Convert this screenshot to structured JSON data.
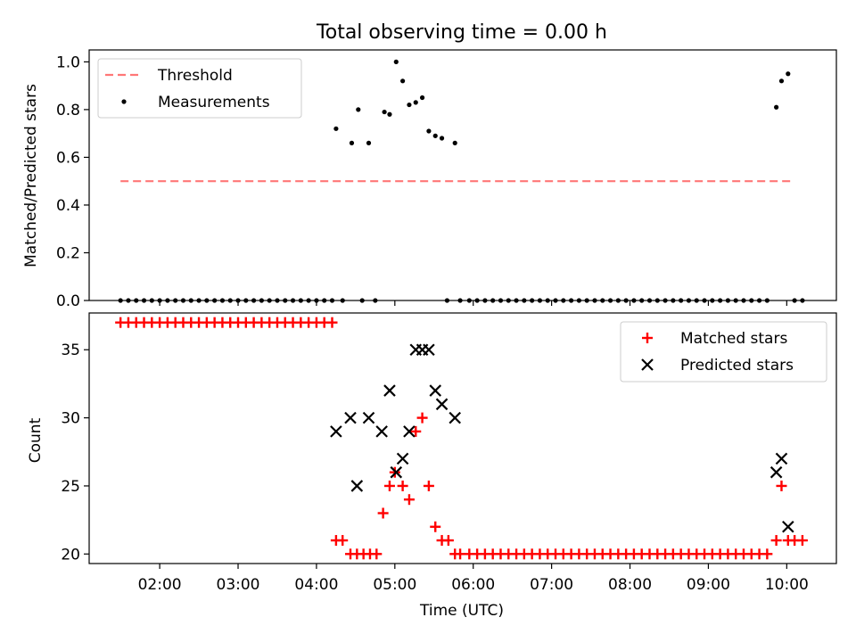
{
  "figure": {
    "title": "Total observing time = 0.00 h"
  },
  "chart_data": [
    {
      "type": "scatter",
      "panel": "top",
      "xlabel": "",
      "ylabel": "Matched/Predicted stars",
      "ylim": [
        0.0,
        1.05
      ],
      "yticks": [
        0.0,
        0.2,
        0.4,
        0.6,
        0.8,
        1.0
      ],
      "ytick_labels": [
        "0.0",
        "0.2",
        "0.4",
        "0.6",
        "0.8",
        "1.0"
      ],
      "legend": {
        "placement": "top-left",
        "entries": [
          "Threshold",
          "Measurements"
        ]
      },
      "threshold": {
        "name": "Threshold",
        "value": 0.5,
        "x_range": [
          "01:30",
          "10:05"
        ],
        "color": "#ff7777"
      },
      "measurements": {
        "name": "Measurements",
        "color": "#000000",
        "zeros_x": [
          "01:30",
          "01:36",
          "01:42",
          "01:48",
          "01:54",
          "02:00",
          "02:06",
          "02:12",
          "02:18",
          "02:24",
          "02:30",
          "02:36",
          "02:42",
          "02:48",
          "02:54",
          "03:00",
          "03:06",
          "03:12",
          "03:18",
          "03:24",
          "03:30",
          "03:36",
          "03:42",
          "03:48",
          "03:54",
          "04:00",
          "04:06",
          "04:12",
          "04:20",
          "04:35",
          "04:45",
          "05:40",
          "05:50",
          "05:57",
          "06:03",
          "06:09",
          "06:15",
          "06:21",
          "06:27",
          "06:33",
          "06:39",
          "06:45",
          "06:51",
          "06:57",
          "07:03",
          "07:09",
          "07:15",
          "07:21",
          "07:27",
          "07:33",
          "07:39",
          "07:45",
          "07:51",
          "07:57",
          "08:03",
          "08:09",
          "08:15",
          "08:21",
          "08:27",
          "08:33",
          "08:39",
          "08:45",
          "08:51",
          "08:57",
          "09:03",
          "09:09",
          "09:15",
          "09:21",
          "09:27",
          "09:33",
          "09:39",
          "09:45",
          "10:06",
          "10:12"
        ],
        "points": [
          {
            "x": "04:15",
            "y": 0.72
          },
          {
            "x": "04:27",
            "y": 0.66
          },
          {
            "x": "04:32",
            "y": 0.8
          },
          {
            "x": "04:40",
            "y": 0.66
          },
          {
            "x": "04:52",
            "y": 0.79
          },
          {
            "x": "04:56",
            "y": 0.78
          },
          {
            "x": "05:01",
            "y": 1.0
          },
          {
            "x": "05:06",
            "y": 0.92
          },
          {
            "x": "05:11",
            "y": 0.82
          },
          {
            "x": "05:16",
            "y": 0.83
          },
          {
            "x": "05:21",
            "y": 0.85
          },
          {
            "x": "05:26",
            "y": 0.71
          },
          {
            "x": "05:31",
            "y": 0.69
          },
          {
            "x": "05:36",
            "y": 0.68
          },
          {
            "x": "05:46",
            "y": 0.66
          },
          {
            "x": "09:52",
            "y": 0.81
          },
          {
            "x": "09:56",
            "y": 0.92
          },
          {
            "x": "10:01",
            "y": 0.95
          }
        ]
      }
    },
    {
      "type": "scatter",
      "panel": "bottom",
      "xlabel": "Time (UTC)",
      "ylabel": "Count",
      "ylim": [
        19.3,
        37.7
      ],
      "yticks": [
        20,
        25,
        30,
        35
      ],
      "ytick_labels": [
        "20",
        "25",
        "30",
        "35"
      ],
      "xticks": [
        "02:00",
        "03:00",
        "04:00",
        "05:00",
        "06:00",
        "07:00",
        "08:00",
        "09:00",
        "10:00"
      ],
      "xlim": [
        "01:06",
        "10:38"
      ],
      "legend": {
        "placement": "top-right",
        "entries": [
          "Matched stars",
          "Predicted stars"
        ]
      },
      "matched": {
        "name": "Matched stars",
        "color": "#ff0000",
        "plateau_37_x": [
          "01:30",
          "01:36",
          "01:42",
          "01:48",
          "01:54",
          "02:00",
          "02:06",
          "02:12",
          "02:18",
          "02:24",
          "02:30",
          "02:36",
          "02:42",
          "02:48",
          "02:54",
          "03:00",
          "03:06",
          "03:12",
          "03:18",
          "03:24",
          "03:30",
          "03:36",
          "03:42",
          "03:48",
          "03:54",
          "04:00",
          "04:06",
          "04:12"
        ],
        "plateau_20_x": [
          "05:50",
          "05:57",
          "06:03",
          "06:09",
          "06:15",
          "06:21",
          "06:27",
          "06:33",
          "06:39",
          "06:45",
          "06:51",
          "06:57",
          "07:03",
          "07:09",
          "07:15",
          "07:21",
          "07:27",
          "07:33",
          "07:39",
          "07:45",
          "07:51",
          "07:57",
          "08:03",
          "08:09",
          "08:15",
          "08:21",
          "08:27",
          "08:33",
          "08:39",
          "08:45",
          "08:51",
          "08:57",
          "09:03",
          "09:09",
          "09:15",
          "09:21",
          "09:27",
          "09:33",
          "09:39",
          "09:45"
        ],
        "points": [
          {
            "x": "04:15",
            "y": 21
          },
          {
            "x": "04:20",
            "y": 21
          },
          {
            "x": "04:26",
            "y": 20
          },
          {
            "x": "04:31",
            "y": 20
          },
          {
            "x": "04:36",
            "y": 20
          },
          {
            "x": "04:41",
            "y": 20
          },
          {
            "x": "04:46",
            "y": 20
          },
          {
            "x": "04:51",
            "y": 23
          },
          {
            "x": "04:56",
            "y": 25
          },
          {
            "x": "05:00",
            "y": 26
          },
          {
            "x": "05:06",
            "y": 25
          },
          {
            "x": "05:11",
            "y": 24
          },
          {
            "x": "05:16",
            "y": 29
          },
          {
            "x": "05:21",
            "y": 30
          },
          {
            "x": "05:26",
            "y": 25
          },
          {
            "x": "05:31",
            "y": 22
          },
          {
            "x": "05:36",
            "y": 21
          },
          {
            "x": "05:41",
            "y": 21
          },
          {
            "x": "05:46",
            "y": 20
          },
          {
            "x": "09:52",
            "y": 21
          },
          {
            "x": "09:56",
            "y": 25
          },
          {
            "x": "10:01",
            "y": 21
          },
          {
            "x": "10:06",
            "y": 21
          },
          {
            "x": "10:12",
            "y": 21
          }
        ]
      },
      "predicted": {
        "name": "Predicted stars",
        "color": "#000000",
        "points": [
          {
            "x": "04:15",
            "y": 29
          },
          {
            "x": "04:26",
            "y": 30
          },
          {
            "x": "04:31",
            "y": 25
          },
          {
            "x": "04:40",
            "y": 30
          },
          {
            "x": "04:50",
            "y": 29
          },
          {
            "x": "04:56",
            "y": 32
          },
          {
            "x": "05:01",
            "y": 26
          },
          {
            "x": "05:06",
            "y": 27
          },
          {
            "x": "05:11",
            "y": 29
          },
          {
            "x": "05:16",
            "y": 35
          },
          {
            "x": "05:21",
            "y": 35
          },
          {
            "x": "05:26",
            "y": 35
          },
          {
            "x": "05:31",
            "y": 32
          },
          {
            "x": "05:36",
            "y": 31
          },
          {
            "x": "05:46",
            "y": 30
          },
          {
            "x": "09:52",
            "y": 26
          },
          {
            "x": "09:56",
            "y": 27
          },
          {
            "x": "10:01",
            "y": 22
          }
        ]
      }
    }
  ]
}
